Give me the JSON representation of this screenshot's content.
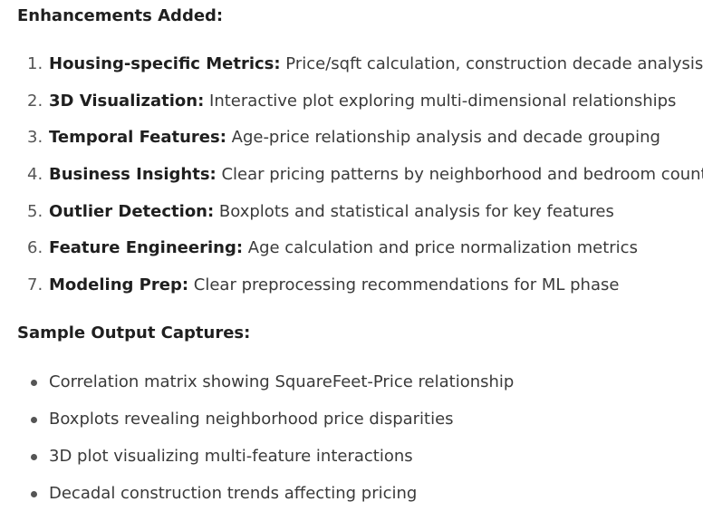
{
  "sections": [
    {
      "heading": "Enhancements Added:",
      "items": [
        {
          "number": "1.",
          "label": "Housing-specific Metrics:",
          "text": " Price/sqft calculation, construction decade analysis"
        },
        {
          "number": "2.",
          "label": "3D Visualization:",
          "text": " Interactive plot exploring multi-dimensional relationships"
        },
        {
          "number": "3.",
          "label": "Temporal Features:",
          "text": " Age-price relationship analysis and decade grouping"
        },
        {
          "number": "4.",
          "label": "Business Insights:",
          "text": " Clear pricing patterns by neighborhood and bedroom count"
        },
        {
          "number": "5.",
          "label": "Outlier Detection:",
          "text": " Boxplots and statistical analysis for key features"
        },
        {
          "number": "6.",
          "label": "Feature Engineering:",
          "text": " Age calculation and price normalization metrics"
        },
        {
          "number": "7.",
          "label": "Modeling Prep:",
          "text": " Clear preprocessing recommendations for ML phase"
        }
      ]
    },
    {
      "heading": "Sample Output Captures:",
      "items": [
        {
          "text": "Correlation matrix showing SquareFeet-Price relationship"
        },
        {
          "text": "Boxplots revealing neighborhood price disparities"
        },
        {
          "text": "3D plot visualizing multi-feature interactions"
        },
        {
          "text": "Decadal construction trends affecting pricing"
        }
      ]
    }
  ]
}
